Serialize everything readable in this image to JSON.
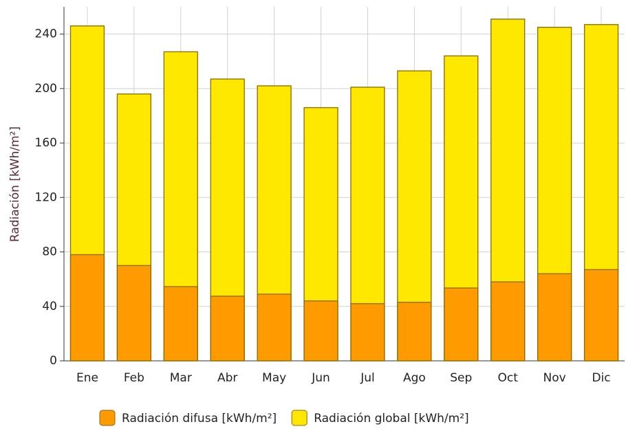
{
  "chart_data": {
    "type": "bar",
    "y_label": "Radiación [kWh/m²]",
    "categories": [
      "Ene",
      "Feb",
      "Mar",
      "Abr",
      "May",
      "Jun",
      "Jul",
      "Ago",
      "Sep",
      "Oct",
      "Nov",
      "Dic"
    ],
    "series": [
      {
        "name": "Radiación difusa [kWh/m²]",
        "color": "#ff9a00",
        "values": [
          78,
          70,
          54.5,
          47.5,
          49,
          44,
          42,
          43,
          53.5,
          58,
          64,
          67
        ]
      },
      {
        "name": "Radiación global [kWh/m²]",
        "color": "#ffe800",
        "values": [
          246,
          196,
          227,
          207,
          202,
          186,
          201,
          213,
          224,
          251,
          245,
          247
        ]
      }
    ],
    "ylim": [
      0,
      260
    ],
    "yticks": [
      0,
      40,
      80,
      120,
      160,
      200,
      240
    ],
    "grid": true
  }
}
